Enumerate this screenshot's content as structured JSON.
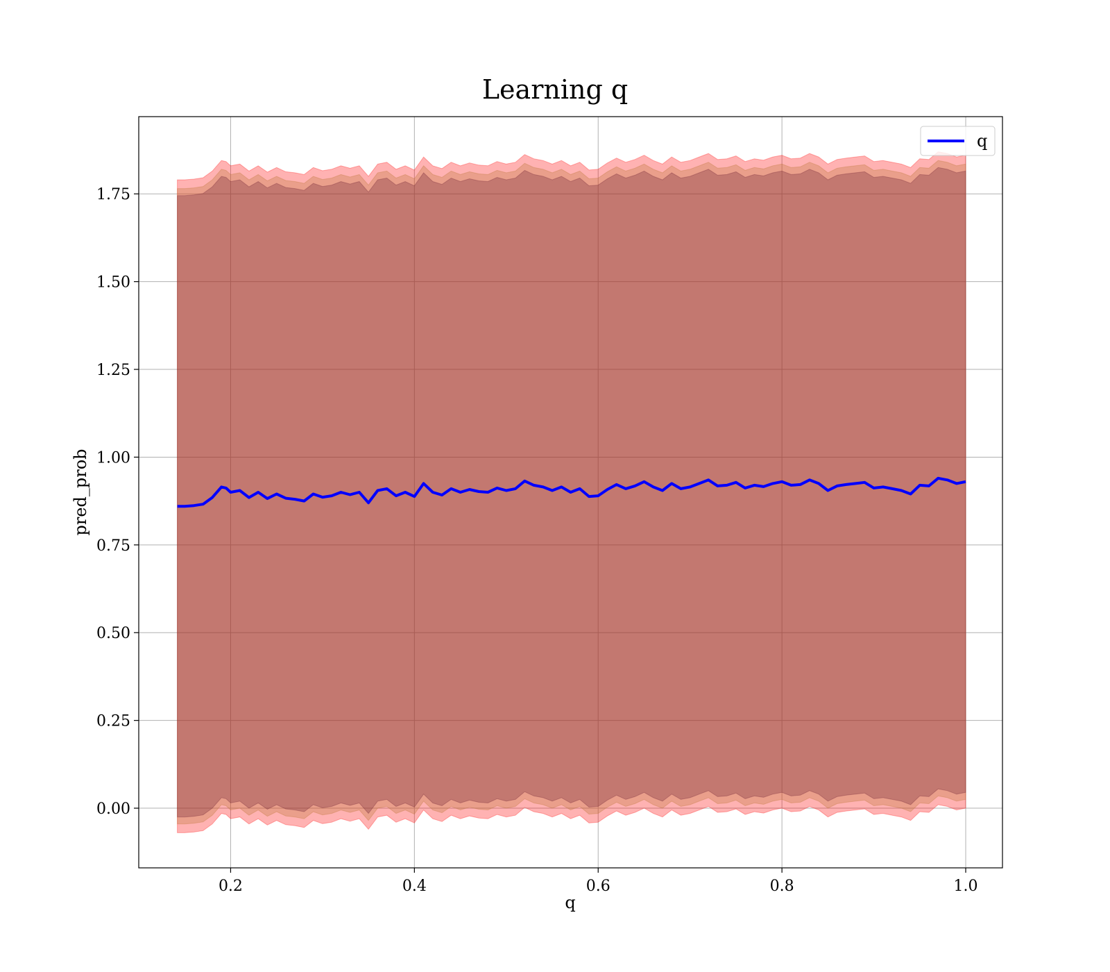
{
  "chart_data": {
    "type": "line",
    "title": "Learning q",
    "xlabel": "q",
    "ylabel": "pred_prob",
    "xlim": [
      0.1,
      1.04
    ],
    "ylim": [
      -0.17,
      1.97
    ],
    "xticks": [
      0.2,
      0.4,
      0.6,
      0.8,
      1.0
    ],
    "xtick_labels": [
      "0.2",
      "0.4",
      "0.6",
      "0.8",
      "1.0"
    ],
    "yticks": [
      0.0,
      0.25,
      0.5,
      0.75,
      1.0,
      1.25,
      1.5,
      1.75
    ],
    "ytick_labels": [
      "0.00",
      "0.25",
      "0.50",
      "0.75",
      "1.00",
      "1.25",
      "1.50",
      "1.75"
    ],
    "grid": true,
    "legend": {
      "position": "top-right",
      "entries": [
        "q"
      ]
    },
    "colors": {
      "line": "#0000ff",
      "band_outer": "#ff0000",
      "band_middle": "#b87333",
      "band_inner": "#6b1f33",
      "grid": "#b0b0b0"
    },
    "series": [
      {
        "name": "q",
        "x": [
          0.142,
          0.15,
          0.16,
          0.17,
          0.18,
          0.19,
          0.195,
          0.2,
          0.21,
          0.22,
          0.23,
          0.24,
          0.25,
          0.26,
          0.27,
          0.28,
          0.29,
          0.3,
          0.31,
          0.32,
          0.33,
          0.34,
          0.35,
          0.36,
          0.37,
          0.38,
          0.39,
          0.4,
          0.41,
          0.42,
          0.43,
          0.44,
          0.45,
          0.46,
          0.47,
          0.48,
          0.49,
          0.5,
          0.51,
          0.52,
          0.53,
          0.54,
          0.55,
          0.56,
          0.57,
          0.58,
          0.59,
          0.6,
          0.61,
          0.62,
          0.63,
          0.64,
          0.65,
          0.66,
          0.67,
          0.68,
          0.69,
          0.7,
          0.71,
          0.72,
          0.73,
          0.74,
          0.75,
          0.76,
          0.77,
          0.78,
          0.79,
          0.8,
          0.81,
          0.82,
          0.83,
          0.84,
          0.85,
          0.86,
          0.87,
          0.88,
          0.89,
          0.9,
          0.91,
          0.92,
          0.93,
          0.94,
          0.95,
          0.96,
          0.97,
          0.98,
          0.99,
          1.0
        ],
        "values": [
          0.86,
          0.86,
          0.862,
          0.866,
          0.885,
          0.915,
          0.912,
          0.9,
          0.905,
          0.885,
          0.9,
          0.882,
          0.895,
          0.883,
          0.88,
          0.875,
          0.895,
          0.886,
          0.89,
          0.9,
          0.893,
          0.9,
          0.87,
          0.905,
          0.91,
          0.89,
          0.9,
          0.888,
          0.925,
          0.9,
          0.892,
          0.91,
          0.9,
          0.908,
          0.902,
          0.9,
          0.912,
          0.905,
          0.91,
          0.932,
          0.92,
          0.915,
          0.905,
          0.915,
          0.9,
          0.91,
          0.888,
          0.89,
          0.908,
          0.922,
          0.91,
          0.918,
          0.93,
          0.915,
          0.905,
          0.925,
          0.91,
          0.915,
          0.925,
          0.935,
          0.918,
          0.92,
          0.928,
          0.912,
          0.92,
          0.916,
          0.925,
          0.93,
          0.92,
          0.922,
          0.935,
          0.925,
          0.905,
          0.918,
          0.922,
          0.925,
          0.928,
          0.912,
          0.915,
          0.91,
          0.905,
          0.895,
          0.92,
          0.918,
          0.94,
          0.935,
          0.925,
          0.93
        ]
      }
    ],
    "bands": [
      {
        "color": "#ff0000",
        "lower_offset": -0.93,
        "upper_offset": 0.93
      },
      {
        "color": "#b87333",
        "lower_offset": -0.905,
        "upper_offset": 0.905
      },
      {
        "color": "#6b1f33",
        "lower_offset": -0.885,
        "upper_offset": 0.885
      }
    ]
  }
}
